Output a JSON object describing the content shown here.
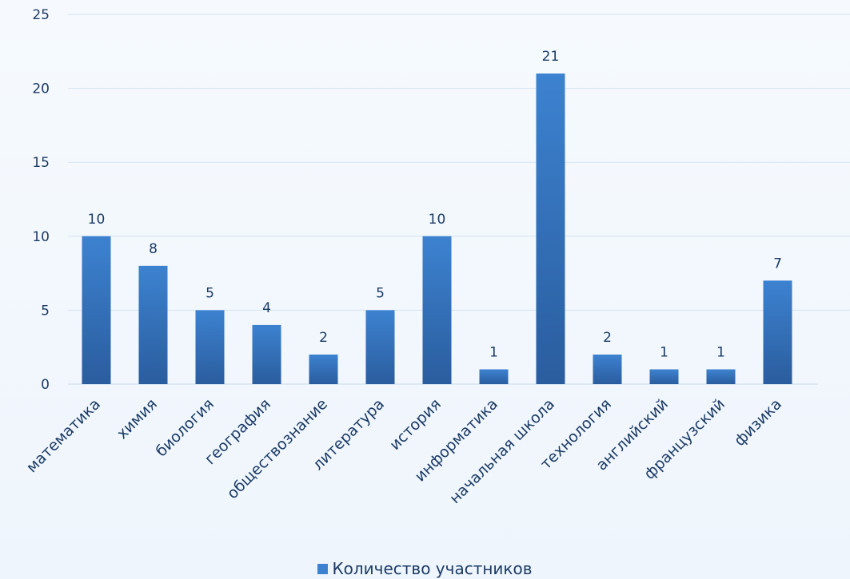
{
  "chart_data": {
    "type": "bar",
    "categories": [
      "математика",
      "химия",
      "биология",
      "география",
      "обществознание",
      "литература",
      "история",
      "информатика",
      "начальная школа",
      "технология",
      "английский",
      "французский",
      "физика"
    ],
    "series": [
      {
        "name": "Количество участников",
        "values": [
          10,
          8,
          5,
          4,
          2,
          5,
          10,
          1,
          21,
          2,
          1,
          1,
          7
        ]
      }
    ],
    "ylim": [
      0,
      25
    ],
    "yticks": [
      0,
      5,
      10,
      15,
      20,
      25
    ],
    "grid": true,
    "data_labels": true,
    "legend_position": "bottom",
    "colors": {
      "bar_top": "#3d82d0",
      "bar_bottom": "#2a5d9e",
      "grid": "#d3e2f2",
      "text": "#1b3b66"
    }
  }
}
